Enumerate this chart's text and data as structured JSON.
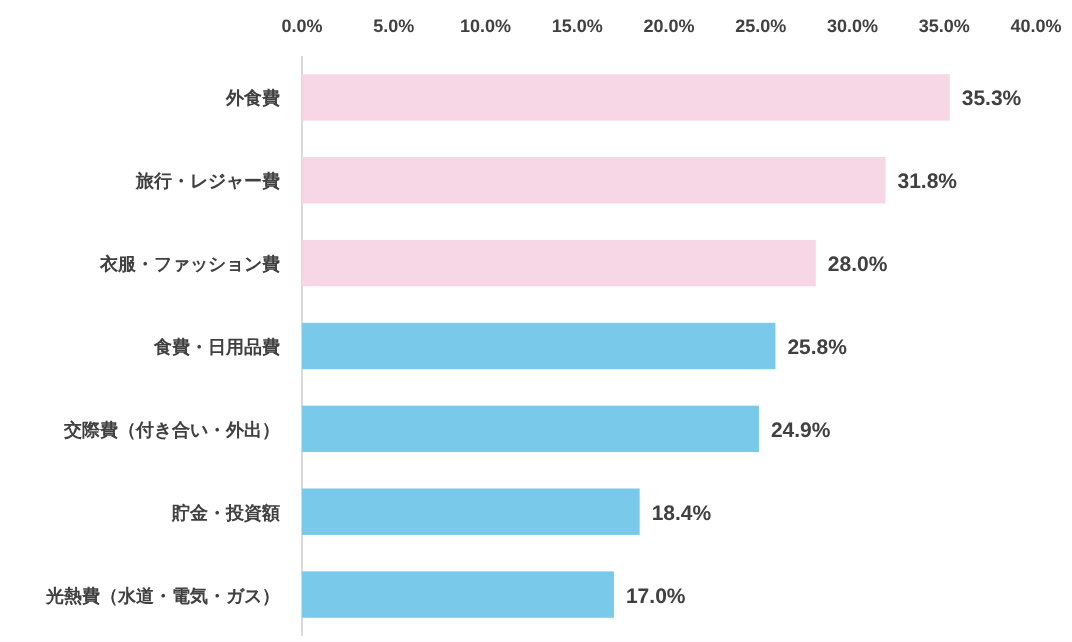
{
  "chart_data": {
    "type": "bar",
    "orientation": "horizontal",
    "categories": [
      "外食費",
      "旅行・レジャー費",
      "衣服・ファッション費",
      "食費・日用品費",
      "交際費（付き合い・外出）",
      "貯金・投資額",
      "光熱費（水道・電気・ガス）"
    ],
    "values": [
      35.3,
      31.8,
      28.0,
      25.8,
      24.9,
      18.4,
      17.0
    ],
    "colors": [
      "#f7d7e6",
      "#f7d7e6",
      "#f7d7e6",
      "#79c9ea",
      "#79c9ea",
      "#79c9ea",
      "#79c9ea"
    ],
    "value_labels": [
      "35.3%",
      "31.8%",
      "28.0%",
      "25.8%",
      "24.9%",
      "18.4%",
      "17.0%"
    ],
    "xlim": [
      0,
      40
    ],
    "xticks": [
      {
        "value": 0,
        "label": "0.0%"
      },
      {
        "value": 5,
        "label": "5.0%"
      },
      {
        "value": 10,
        "label": "10.0%"
      },
      {
        "value": 15,
        "label": "15.0%"
      },
      {
        "value": 20,
        "label": "20.0%"
      },
      {
        "value": 25,
        "label": "25.0%"
      },
      {
        "value": 30,
        "label": "30.0%"
      },
      {
        "value": 35,
        "label": "35.0%"
      },
      {
        "value": 40,
        "label": "40.0%"
      }
    ]
  }
}
